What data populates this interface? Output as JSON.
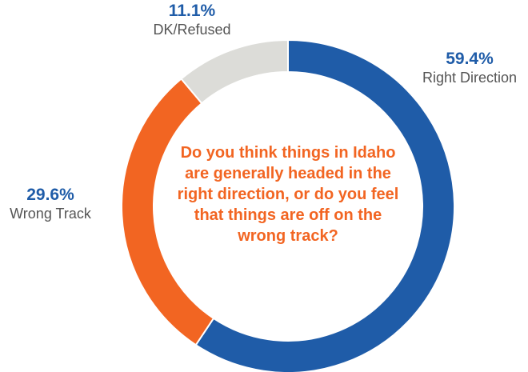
{
  "colors": {
    "right_direction": "#1f5ca8",
    "wrong_track": "#f26522",
    "dk_refused": "#dcdcd8",
    "question_text": "#f26522"
  },
  "chart_data": {
    "type": "pie",
    "variant": "donut",
    "title": "",
    "question": "Do you think things in Idaho are generally headed in the right direction, or do you feel that things are off on the wrong track?",
    "slices": [
      {
        "label": "Right Direction",
        "value": 59.4,
        "display": "59.4%",
        "color": "#1f5ca8"
      },
      {
        "label": "Wrong Track",
        "value": 29.6,
        "display": "29.6%",
        "color": "#f26522"
      },
      {
        "label": "DK/Refused",
        "value": 11.1,
        "display": "11.1%",
        "color": "#dcdcd8"
      }
    ],
    "legend": "none"
  }
}
